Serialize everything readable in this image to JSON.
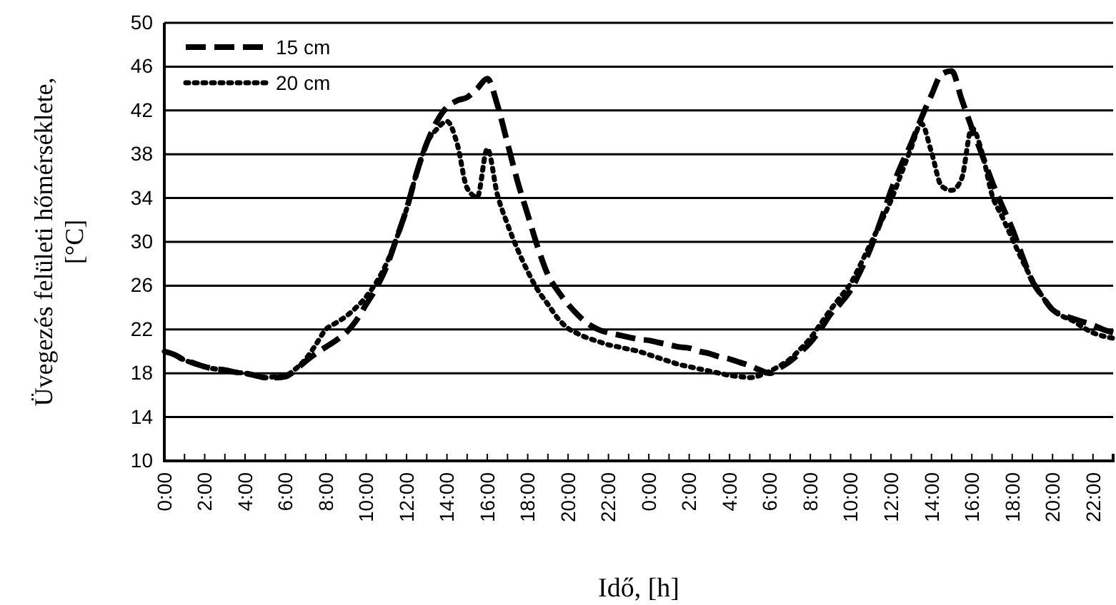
{
  "chart_data": {
    "type": "line",
    "xlabel": "Idő, [h]",
    "ylabel": "Üvegezés felületi hőmérséklete, [°C]",
    "categories": [
      "0:00",
      null,
      null,
      null,
      "2:00",
      null,
      null,
      null,
      "4:00",
      null,
      null,
      null,
      "6:00",
      null,
      null,
      null,
      "8:00",
      null,
      null,
      null,
      "10:00",
      null,
      null,
      null,
      "12:00",
      null,
      null,
      null,
      "14:00",
      null,
      null,
      null,
      "16:00",
      null,
      null,
      null,
      "18:00",
      null,
      null,
      null,
      "20:00",
      null,
      null,
      null,
      "22:00",
      null,
      null,
      null,
      "0:00",
      null,
      null,
      null,
      "2:00",
      null,
      null,
      null,
      "4:00",
      null,
      null,
      null,
      "6:00",
      null,
      null,
      null,
      "8:00",
      null,
      null,
      null,
      "10:00",
      null,
      null,
      null,
      "12:00",
      null,
      null,
      null,
      "14:00",
      null,
      null,
      null,
      "16:00",
      null,
      null,
      null,
      "18:00",
      null,
      null,
      null,
      "20:00",
      null,
      null,
      null,
      "22:00",
      null,
      null
    ],
    "ylim": [
      10,
      50
    ],
    "yticks": [
      10,
      14,
      18,
      22,
      26,
      30,
      34,
      38,
      42,
      46,
      50
    ],
    "grid": "y",
    "legend": "top left",
    "marker": "none",
    "series": [
      {
        "name": "15 cm",
        "color": "#000000",
        "line_style": "dashed",
        "values": [
          20,
          19.7,
          19.2,
          18.9,
          18.6,
          18.4,
          18.3,
          18.1,
          18,
          17.8,
          17.6,
          17.6,
          17.7,
          18.3,
          19.1,
          19.8,
          20.4,
          21,
          21.7,
          22.8,
          24.3,
          25.8,
          27.7,
          30.3,
          33,
          36.3,
          39,
          41,
          42.3,
          42.9,
          43.2,
          44,
          44.9,
          42.5,
          39,
          35.5,
          32.5,
          29.5,
          27,
          25.5,
          24.3,
          23.3,
          22.5,
          22,
          21.7,
          21.5,
          21.3,
          21.1,
          21,
          20.8,
          20.6,
          20.4,
          20.3,
          20,
          19.8,
          19.5,
          19.3,
          19,
          18.7,
          18.3,
          18,
          18.5,
          19.1,
          19.9,
          20.8,
          22,
          23.4,
          24.4,
          25.6,
          27.4,
          29.5,
          32,
          34.7,
          37,
          39,
          41.3,
          43.4,
          45.3,
          45.6,
          43,
          40.4,
          38,
          35.5,
          33.3,
          31.2,
          28.7,
          26.4,
          25,
          23.8,
          23.3,
          23,
          22.7,
          22.4,
          22,
          21.7
        ]
      },
      {
        "name": "20 cm",
        "color": "#000000",
        "line_style": "dotted",
        "values": [
          20,
          19.7,
          19.2,
          18.9,
          18.6,
          18.4,
          18.3,
          18.1,
          18,
          17.8,
          17.6,
          17.7,
          17.8,
          18.4,
          19.3,
          20.6,
          22,
          22.6,
          23.2,
          24,
          25,
          26.3,
          28,
          30.3,
          33,
          36.3,
          39,
          40.3,
          41,
          39,
          34.9,
          34.1,
          38.5,
          34.3,
          31.6,
          29.3,
          27.3,
          25.6,
          24.3,
          23,
          22.1,
          21.6,
          21.2,
          20.9,
          20.6,
          20.4,
          20.2,
          20,
          19.7,
          19.4,
          19.1,
          18.8,
          18.6,
          18.4,
          18.2,
          18,
          17.8,
          17.7,
          17.6,
          17.8,
          18.2,
          18.7,
          19.3,
          20.2,
          21.2,
          22.5,
          23.8,
          25,
          26.2,
          28,
          29.9,
          31.8,
          33.8,
          36.2,
          38.6,
          40.8,
          38.2,
          35.1,
          34.7,
          35.8,
          40.4,
          38.2,
          34.3,
          32.3,
          30.3,
          28.3,
          26.5,
          25,
          23.8,
          23.2,
          22.8,
          22.2,
          21.7,
          21.4,
          21.2
        ]
      }
    ]
  }
}
